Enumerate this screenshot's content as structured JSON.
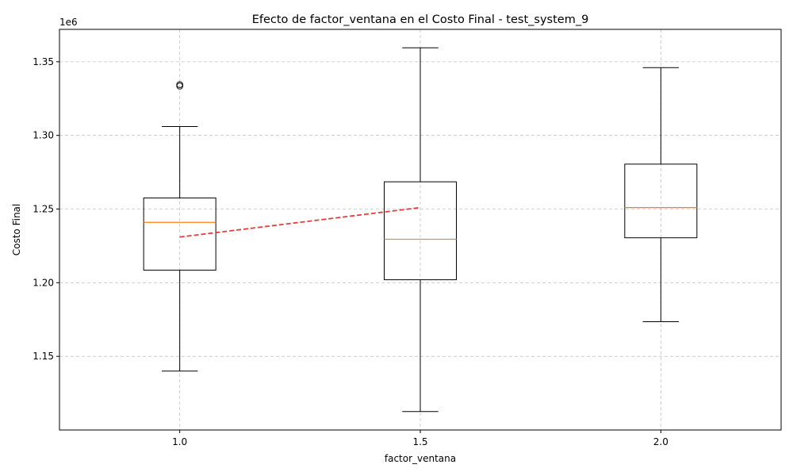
{
  "chart_data": {
    "type": "boxplot",
    "title": "Efecto de factor_ventana en el Costo Final - test_system_9",
    "xlabel": "factor_ventana",
    "ylabel": "Costo Final",
    "y_offset_label": "1e6",
    "y_scale_factor": 1000000,
    "categories": [
      "1.0",
      "1.5",
      "2.0"
    ],
    "y_ticks": [
      1.15,
      1.2,
      1.25,
      1.3,
      1.35
    ],
    "y_tick_labels": [
      "1.15",
      "1.20",
      "1.25",
      "1.30",
      "1.35"
    ],
    "ylim": [
      1.1,
      1.372
    ],
    "xlim": [
      0.75,
      2.25
    ],
    "grid": true,
    "boxes": [
      {
        "x": 1.0,
        "whisker_low": 1.14,
        "q1": 1.2085,
        "median": 1.241,
        "q3": 1.2575,
        "whisker_high": 1.306,
        "outliers": [
          1.3335,
          1.3345
        ]
      },
      {
        "x": 1.5,
        "whisker_low": 1.1125,
        "q1": 1.202,
        "median": 1.2295,
        "q3": 1.2685,
        "whisker_high": 1.3595,
        "outliers": []
      },
      {
        "x": 2.0,
        "whisker_low": 1.1735,
        "q1": 1.2305,
        "median": 1.251,
        "q3": 1.2805,
        "whisker_high": 1.346,
        "outliers": []
      }
    ],
    "trend_line": {
      "x": [
        1.0,
        1.5
      ],
      "y": [
        1.231,
        1.251
      ],
      "style": "dashed",
      "color": "#e8312f"
    },
    "colors": {
      "box": "#000000",
      "median": "#ff7f0e",
      "trend": "#e8312f"
    }
  }
}
